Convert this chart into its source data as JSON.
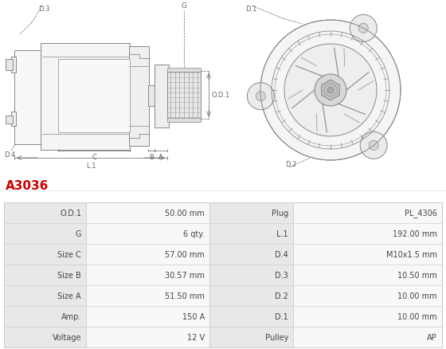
{
  "title": "A3036",
  "title_color": "#cc0000",
  "background_color": "#ffffff",
  "table_row_bg_dark": "#e8e8e8",
  "table_row_bg_light": "#f8f8f8",
  "table_border_color": "#cccccc",
  "rows": [
    [
      "Voltage",
      "12 V",
      "Pulley",
      "AP"
    ],
    [
      "Amp.",
      "150 A",
      "D.1",
      "10.00 mm"
    ],
    [
      "Size A",
      "51.50 mm",
      "D.2",
      "10.00 mm"
    ],
    [
      "Size B",
      "30.57 mm",
      "D.3",
      "10.50 mm"
    ],
    [
      "Size C",
      "57.00 mm",
      "D.4",
      "M10x1.5 mm"
    ],
    [
      "G",
      "6 qty.",
      "L.1",
      "192.00 mm"
    ],
    [
      "O.D.1",
      "50.00 mm",
      "Plug",
      "PL_4306"
    ]
  ],
  "text_color": "#444444",
  "dim_color": "#666666",
  "line_color": "#888888",
  "font_size_title": 11,
  "font_size_table": 7,
  "font_size_dim": 6
}
